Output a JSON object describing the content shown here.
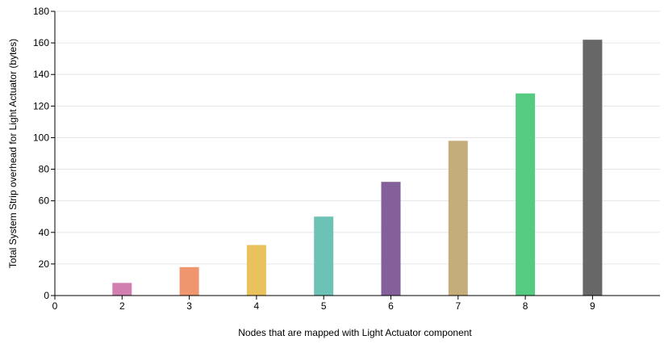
{
  "chart_data": {
    "type": "bar",
    "xlabel": "Nodes that are mapped with Light Actuator component",
    "ylabel": "Total System Strip overhead for Light Actuator (bytes)",
    "x_ticks": [
      "0",
      "2",
      "3",
      "4",
      "5",
      "6",
      "7",
      "8",
      "9"
    ],
    "categories": [
      "2",
      "3",
      "4",
      "5",
      "6",
      "7",
      "8",
      "9"
    ],
    "values": [
      8,
      18,
      32,
      50,
      72,
      98,
      128,
      162
    ],
    "colors": [
      "#d17fb1",
      "#f0966f",
      "#e9c25d",
      "#6bc2b5",
      "#83609a",
      "#c4ad7b",
      "#55cb82",
      "#676767"
    ],
    "ylim": [
      0,
      180
    ],
    "y_ticks": [
      0,
      20,
      40,
      60,
      80,
      100,
      120,
      140,
      160,
      180
    ],
    "grid": true,
    "legend": "none"
  }
}
